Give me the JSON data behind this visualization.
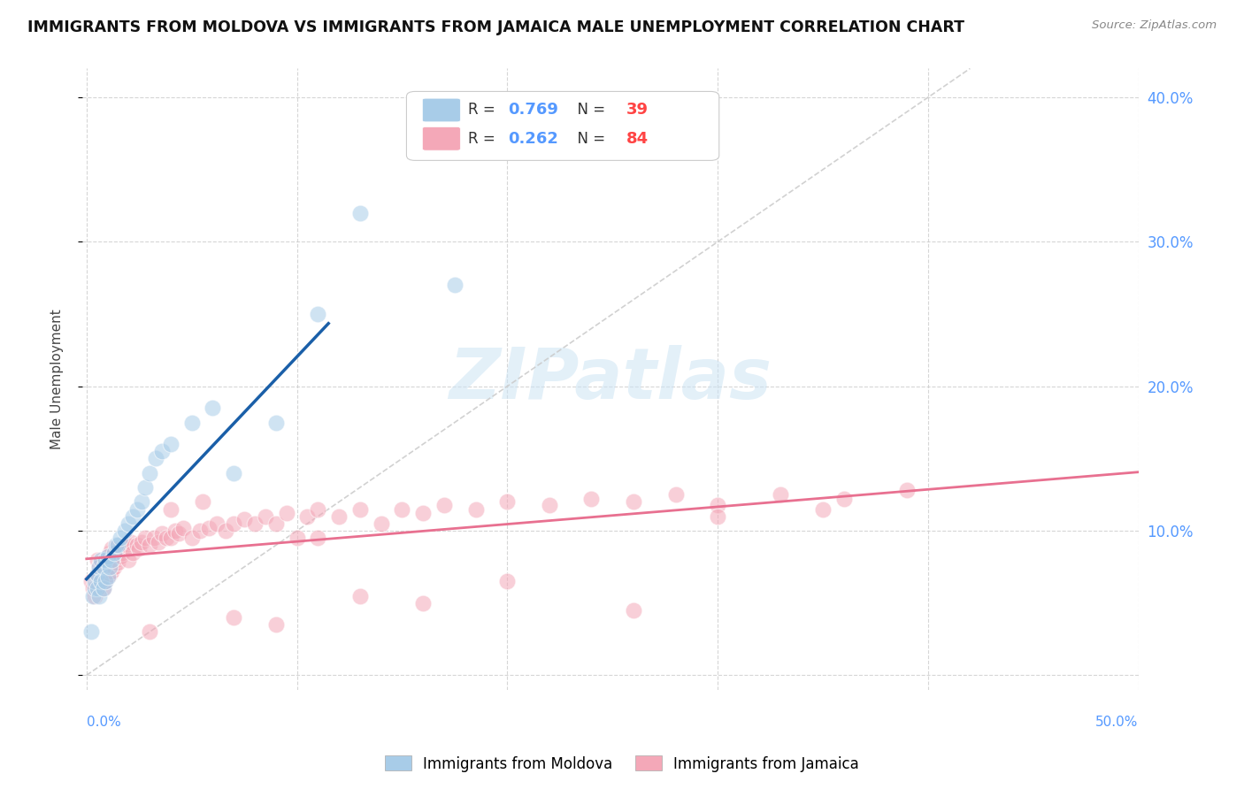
{
  "title": "IMMIGRANTS FROM MOLDOVA VS IMMIGRANTS FROM JAMAICA MALE UNEMPLOYMENT CORRELATION CHART",
  "source": "Source: ZipAtlas.com",
  "ylabel": "Male Unemployment",
  "ylim": [
    -0.01,
    0.42
  ],
  "xlim": [
    -0.002,
    0.5
  ],
  "r_moldova": 0.769,
  "n_moldova": 39,
  "r_jamaica": 0.262,
  "n_jamaica": 84,
  "color_moldova": "#a8cce8",
  "color_jamaica": "#f4a8b8",
  "color_moldova_line": "#1a5fa8",
  "color_jamaica_line": "#e87090",
  "legend_label_moldova": "Immigrants from Moldova",
  "legend_label_jamaica": "Immigrants from Jamaica",
  "watermark_text": "ZIPatlas",
  "moldova_x": [
    0.002,
    0.003,
    0.004,
    0.004,
    0.005,
    0.005,
    0.006,
    0.006,
    0.007,
    0.007,
    0.008,
    0.008,
    0.009,
    0.009,
    0.01,
    0.01,
    0.011,
    0.012,
    0.013,
    0.014,
    0.015,
    0.016,
    0.018,
    0.02,
    0.022,
    0.024,
    0.026,
    0.028,
    0.03,
    0.033,
    0.036,
    0.04,
    0.05,
    0.06,
    0.07,
    0.09,
    0.11,
    0.13,
    0.175
  ],
  "moldova_y": [
    0.03,
    0.055,
    0.06,
    0.065,
    0.06,
    0.07,
    0.055,
    0.075,
    0.065,
    0.08,
    0.06,
    0.075,
    0.065,
    0.08,
    0.068,
    0.082,
    0.075,
    0.08,
    0.085,
    0.09,
    0.09,
    0.095,
    0.1,
    0.105,
    0.11,
    0.115,
    0.12,
    0.13,
    0.14,
    0.15,
    0.155,
    0.16,
    0.175,
    0.185,
    0.14,
    0.175,
    0.25,
    0.32,
    0.27
  ],
  "jamaica_x": [
    0.002,
    0.003,
    0.004,
    0.005,
    0.005,
    0.006,
    0.006,
    0.007,
    0.007,
    0.008,
    0.008,
    0.009,
    0.009,
    0.01,
    0.01,
    0.011,
    0.011,
    0.012,
    0.012,
    0.013,
    0.014,
    0.015,
    0.016,
    0.017,
    0.018,
    0.019,
    0.02,
    0.021,
    0.022,
    0.024,
    0.025,
    0.026,
    0.028,
    0.03,
    0.032,
    0.034,
    0.036,
    0.038,
    0.04,
    0.042,
    0.044,
    0.046,
    0.05,
    0.054,
    0.058,
    0.062,
    0.066,
    0.07,
    0.075,
    0.08,
    0.085,
    0.09,
    0.095,
    0.1,
    0.105,
    0.11,
    0.12,
    0.13,
    0.14,
    0.15,
    0.16,
    0.17,
    0.185,
    0.2,
    0.22,
    0.24,
    0.26,
    0.28,
    0.3,
    0.33,
    0.36,
    0.39,
    0.3,
    0.35,
    0.04,
    0.055,
    0.03,
    0.07,
    0.09,
    0.11,
    0.13,
    0.16,
    0.2,
    0.26
  ],
  "jamaica_y": [
    0.065,
    0.06,
    0.055,
    0.07,
    0.08,
    0.06,
    0.075,
    0.065,
    0.078,
    0.06,
    0.072,
    0.065,
    0.08,
    0.068,
    0.082,
    0.07,
    0.085,
    0.072,
    0.088,
    0.075,
    0.08,
    0.078,
    0.082,
    0.085,
    0.088,
    0.09,
    0.08,
    0.092,
    0.085,
    0.09,
    0.088,
    0.092,
    0.095,
    0.09,
    0.095,
    0.092,
    0.098,
    0.095,
    0.095,
    0.1,
    0.098,
    0.102,
    0.095,
    0.1,
    0.102,
    0.105,
    0.1,
    0.105,
    0.108,
    0.105,
    0.11,
    0.105,
    0.112,
    0.095,
    0.11,
    0.115,
    0.11,
    0.115,
    0.105,
    0.115,
    0.112,
    0.118,
    0.115,
    0.12,
    0.118,
    0.122,
    0.12,
    0.125,
    0.118,
    0.125,
    0.122,
    0.128,
    0.11,
    0.115,
    0.115,
    0.12,
    0.03,
    0.04,
    0.035,
    0.095,
    0.055,
    0.05,
    0.065,
    0.045
  ]
}
